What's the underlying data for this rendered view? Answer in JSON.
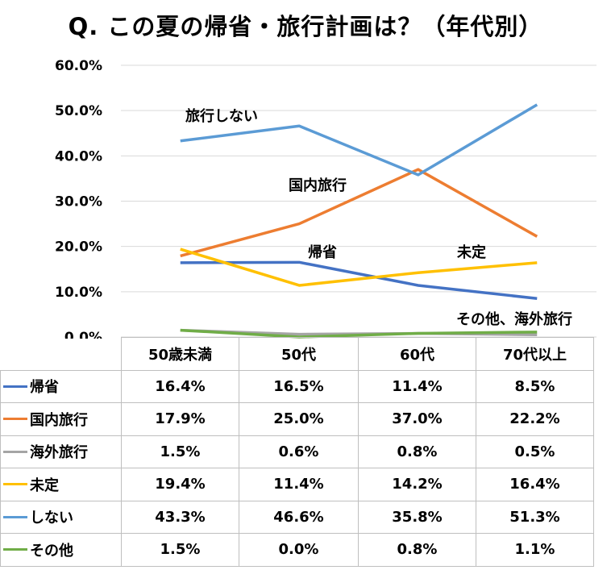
{
  "chart_data": {
    "type": "line",
    "title": "Q. この夏の帰省・旅行計画は？（年代別）",
    "categories": [
      "50歳未満",
      "50代",
      "60代",
      "70代以上"
    ],
    "ylim": [
      0,
      60
    ],
    "yticks": [
      "0.0%",
      "10.0%",
      "20.0%",
      "30.0%",
      "40.0%",
      "50.0%",
      "60.0%"
    ],
    "grid": true,
    "series": [
      {
        "name": "帰省",
        "color": "#4472c4",
        "values": [
          16.4,
          16.5,
          11.4,
          8.5
        ],
        "labels": [
          "16.4%",
          "16.5%",
          "11.4%",
          "8.5%"
        ]
      },
      {
        "name": "国内旅行",
        "color": "#ed7d31",
        "values": [
          17.9,
          25.0,
          37.0,
          22.2
        ],
        "labels": [
          "17.9%",
          "25.0%",
          "37.0%",
          "22.2%"
        ]
      },
      {
        "name": "海外旅行",
        "color": "#a5a5a5",
        "values": [
          1.5,
          0.6,
          0.8,
          0.5
        ],
        "labels": [
          "1.5%",
          "0.6%",
          "0.8%",
          "0.5%"
        ]
      },
      {
        "name": "未定",
        "color": "#ffc000",
        "values": [
          19.4,
          11.4,
          14.2,
          16.4
        ],
        "labels": [
          "19.4%",
          "11.4%",
          "14.2%",
          "16.4%"
        ]
      },
      {
        "name": "しない",
        "color": "#5b9bd5",
        "values": [
          43.3,
          46.6,
          35.8,
          51.3
        ],
        "labels": [
          "43.3%",
          "46.6%",
          "35.8%",
          "51.3%"
        ]
      },
      {
        "name": "その他",
        "color": "#70ad47",
        "values": [
          1.5,
          0.0,
          0.8,
          1.1
        ],
        "labels": [
          "1.5%",
          "0.0%",
          "0.8%",
          "1.1%"
        ]
      }
    ],
    "annotations": {
      "shinai": "旅行しない",
      "kokunai": "国内旅行",
      "kisei": "帰省",
      "mitei": "未定",
      "other": "その他、海外旅行"
    }
  }
}
